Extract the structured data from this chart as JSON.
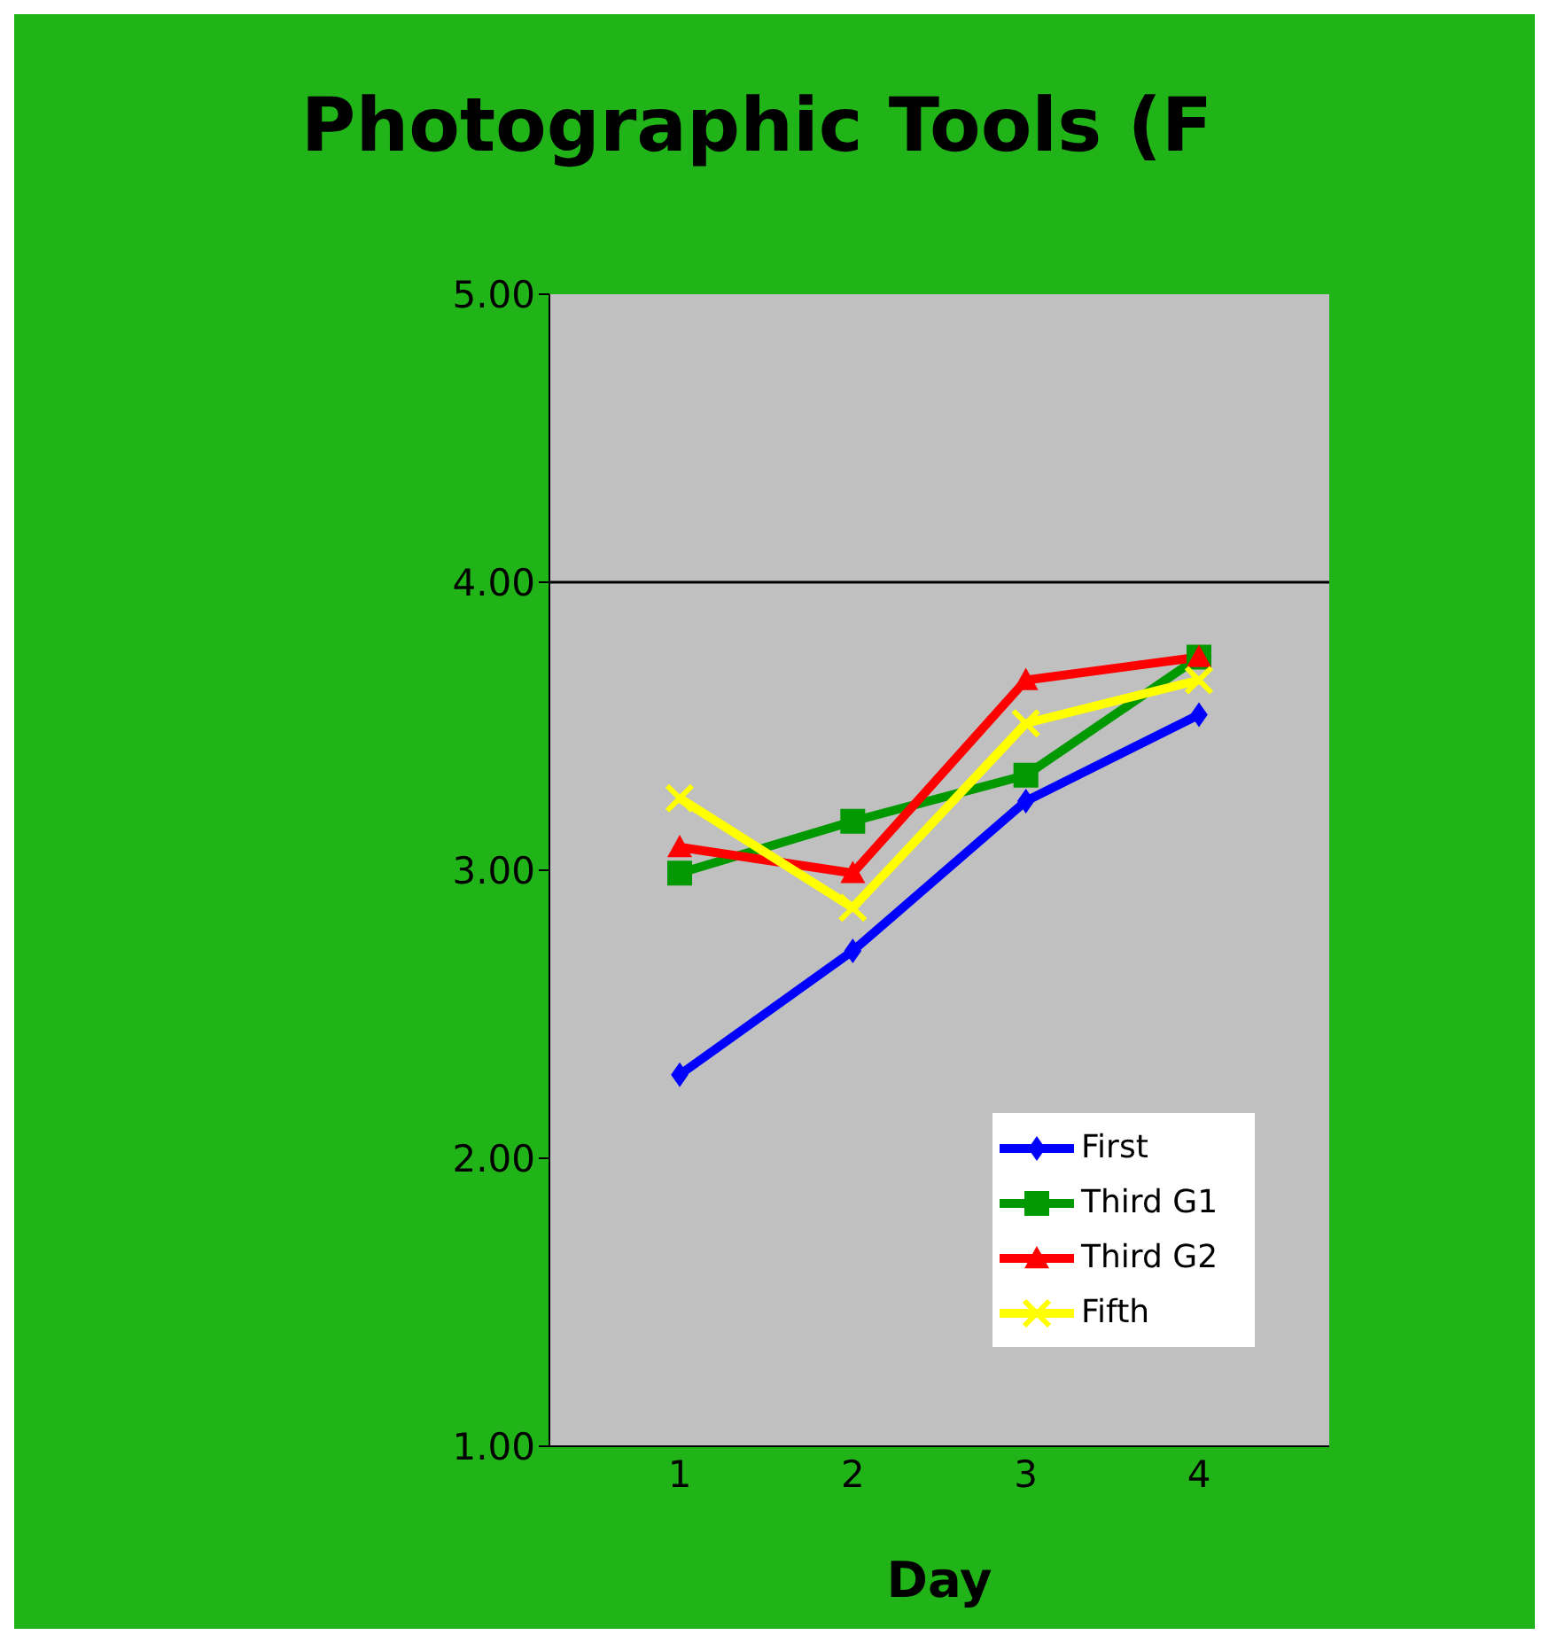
{
  "chart_data": {
    "type": "line",
    "title": "Photographic Tools (F",
    "xlabel": "Day",
    "categories": [
      "1",
      "2",
      "3",
      "4"
    ],
    "series": [
      {
        "name": "First",
        "color": "#0000ff",
        "marker": "diamond",
        "values": [
          2.29,
          2.72,
          3.24,
          3.54
        ]
      },
      {
        "name": "Third G1",
        "color": "#009900",
        "marker": "square",
        "values": [
          2.99,
          3.17,
          3.33,
          3.74
        ]
      },
      {
        "name": "Third G2",
        "color": "#ff0000",
        "marker": "triangle",
        "values": [
          3.08,
          2.99,
          3.66,
          3.74
        ]
      },
      {
        "name": "Fifth",
        "color": "#ffff00",
        "marker": "cross",
        "values": [
          3.25,
          2.87,
          3.51,
          3.66
        ]
      }
    ],
    "ylim": [
      1,
      5
    ],
    "yticks": [
      {
        "value": 1,
        "label": "1.00"
      },
      {
        "value": 2,
        "label": "2.00"
      },
      {
        "value": 3,
        "label": "3.00"
      },
      {
        "value": 4,
        "label": "4.00"
      },
      {
        "value": 5,
        "label": "5.00"
      }
    ],
    "ref_lines": [
      {
        "axis": "y",
        "value": 4,
        "color": "#000000"
      }
    ],
    "legend": "bottom right",
    "line_style": "solid"
  }
}
